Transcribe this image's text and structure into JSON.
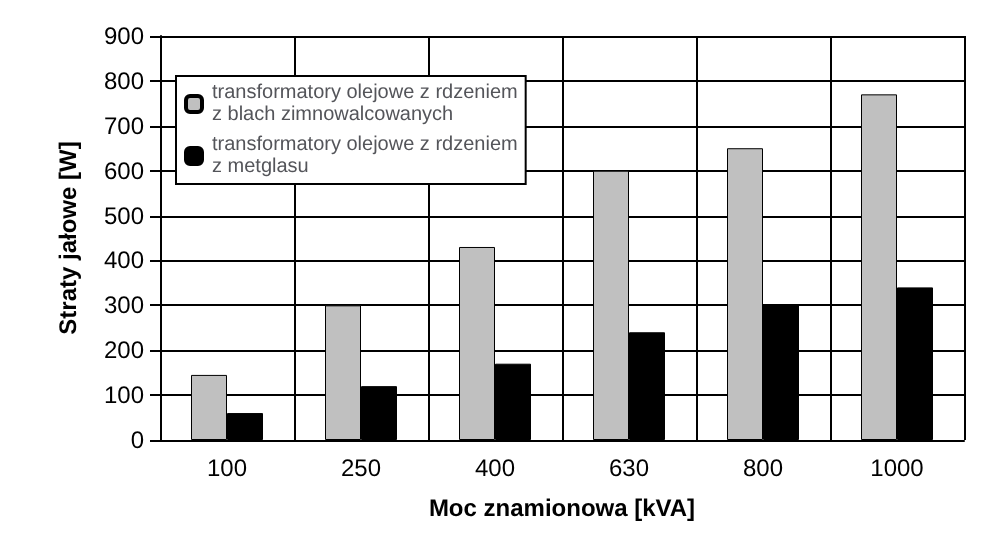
{
  "chart_data": {
    "type": "bar",
    "xlabel": "Moc znamionowa [kVA]",
    "ylabel": "Straty jałowe [W]",
    "categories": [
      "100",
      "250",
      "400",
      "630",
      "800",
      "1000"
    ],
    "series": [
      {
        "name": "transformatory olejowe z rdzeniem\nz blach zimnowalcowanych",
        "color": "#c0c0c0",
        "values": [
          145,
          300,
          430,
          600,
          650,
          770
        ]
      },
      {
        "name": "transformatory olejowe z rdzeniem\nz metglasu",
        "color": "#000000",
        "values": [
          60,
          120,
          170,
          240,
          300,
          340
        ]
      }
    ],
    "ylim": [
      0,
      900
    ],
    "yticks": [
      0,
      100,
      200,
      300,
      400,
      500,
      600,
      700,
      800,
      900
    ],
    "grid": true,
    "legend": "top left"
  }
}
